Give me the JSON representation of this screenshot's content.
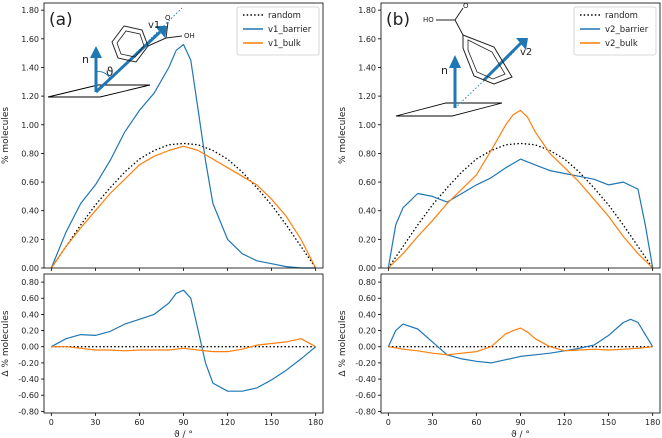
{
  "colors": {
    "blue": "#1f77b4",
    "orange": "#ff7f0e",
    "black": "#000000"
  },
  "chart_data": [
    {
      "type": "line",
      "panel_label": "(a)",
      "ylabel": "% molecules",
      "ylim": [
        0,
        1.85
      ],
      "yticks": [
        0.0,
        0.2,
        0.4,
        0.6,
        0.8,
        1.0,
        1.2,
        1.4,
        1.6,
        1.8
      ],
      "ytick_labels": [
        "0.00",
        "0.20",
        "0.40",
        "0.60",
        "0.80",
        "1.00",
        "1.20",
        "1.40",
        "1.60",
        "1.80"
      ],
      "xlim": [
        -5,
        185
      ],
      "xticks": [
        0,
        30,
        60,
        90,
        120,
        150,
        180
      ],
      "legend": [
        "random",
        "v1_barrier",
        "v1_bulk"
      ],
      "legend_position": "top-right",
      "inset": {
        "n_label": "n",
        "v_label": "v1",
        "theta_label": "ϑ",
        "atom_labels": [
          "O",
          "OH"
        ]
      },
      "series": [
        {
          "name": "random",
          "style": "dotted",
          "color": "black",
          "x": [
            0,
            10,
            20,
            30,
            40,
            50,
            60,
            70,
            80,
            90,
            100,
            110,
            120,
            130,
            140,
            150,
            160,
            170,
            180
          ],
          "y": [
            0.0,
            0.15,
            0.3,
            0.44,
            0.56,
            0.67,
            0.76,
            0.82,
            0.86,
            0.87,
            0.86,
            0.82,
            0.76,
            0.67,
            0.56,
            0.44,
            0.3,
            0.15,
            0.0
          ]
        },
        {
          "name": "v1_barrier",
          "style": "solid",
          "color": "blue",
          "x": [
            0,
            10,
            20,
            30,
            40,
            50,
            60,
            70,
            80,
            85,
            90,
            95,
            100,
            105,
            110,
            120,
            130,
            140,
            150,
            160,
            170,
            175,
            180
          ],
          "y": [
            0.0,
            0.25,
            0.45,
            0.58,
            0.75,
            0.95,
            1.1,
            1.22,
            1.4,
            1.52,
            1.56,
            1.45,
            1.1,
            0.75,
            0.45,
            0.2,
            0.1,
            0.05,
            0.03,
            0.01,
            0.0,
            0.0,
            0.0
          ]
        },
        {
          "name": "v1_bulk",
          "style": "solid",
          "color": "orange",
          "x": [
            0,
            10,
            20,
            30,
            40,
            50,
            60,
            70,
            80,
            90,
            100,
            110,
            120,
            130,
            140,
            150,
            160,
            170,
            180
          ],
          "y": [
            0.0,
            0.15,
            0.28,
            0.4,
            0.52,
            0.62,
            0.72,
            0.78,
            0.82,
            0.85,
            0.82,
            0.76,
            0.7,
            0.64,
            0.58,
            0.48,
            0.36,
            0.2,
            0.0
          ]
        }
      ]
    },
    {
      "type": "line",
      "panel_label": "",
      "ylabel": "Δ % molecules",
      "xlabel": "ϑ / °",
      "ylim": [
        -0.82,
        0.9
      ],
      "yticks": [
        -0.8,
        -0.6,
        -0.4,
        -0.2,
        0.0,
        0.2,
        0.4,
        0.6,
        0.8
      ],
      "ytick_labels": [
        "-0.80",
        "-0.60",
        "-0.40",
        "-0.20",
        "0.00",
        "0.20",
        "0.40",
        "0.60",
        "0.80"
      ],
      "xlim": [
        -5,
        185
      ],
      "xticks": [
        0,
        30,
        60,
        90,
        120,
        150,
        180
      ],
      "xtick_labels": [
        "0",
        "30",
        "60",
        "90",
        "120",
        "150",
        "180"
      ],
      "series": [
        {
          "name": "zero",
          "style": "dotted",
          "color": "black",
          "x": [
            0,
            180
          ],
          "y": [
            0,
            0
          ]
        },
        {
          "name": "v1_barrier",
          "style": "solid",
          "color": "blue",
          "x": [
            0,
            10,
            20,
            30,
            40,
            50,
            60,
            70,
            80,
            85,
            90,
            95,
            100,
            105,
            110,
            120,
            130,
            140,
            150,
            160,
            170,
            180
          ],
          "y": [
            0.0,
            0.1,
            0.15,
            0.14,
            0.19,
            0.28,
            0.34,
            0.4,
            0.54,
            0.66,
            0.7,
            0.6,
            0.2,
            -0.2,
            -0.45,
            -0.55,
            -0.55,
            -0.51,
            -0.41,
            -0.29,
            -0.15,
            0.0
          ]
        },
        {
          "name": "v1_bulk",
          "style": "solid",
          "color": "orange",
          "x": [
            0,
            10,
            20,
            30,
            40,
            50,
            60,
            70,
            80,
            90,
            100,
            110,
            120,
            130,
            140,
            150,
            160,
            170,
            180
          ],
          "y": [
            0.0,
            0.0,
            -0.02,
            -0.04,
            -0.04,
            -0.05,
            -0.04,
            -0.04,
            -0.04,
            -0.02,
            -0.04,
            -0.06,
            -0.06,
            -0.03,
            0.02,
            0.04,
            0.06,
            0.1,
            0.0
          ]
        }
      ]
    },
    {
      "type": "line",
      "panel_label": "(b)",
      "ylabel": "% molecules",
      "ylim": [
        0,
        1.85
      ],
      "yticks": [
        0.0,
        0.2,
        0.4,
        0.6,
        0.8,
        1.0,
        1.2,
        1.4,
        1.6,
        1.8
      ],
      "ytick_labels": [
        "0.00",
        "0.20",
        "0.40",
        "0.60",
        "0.80",
        "1.00",
        "1.20",
        "1.40",
        "1.60",
        "1.80"
      ],
      "xlim": [
        -5,
        185
      ],
      "xticks": [
        0,
        30,
        60,
        90,
        120,
        150,
        180
      ],
      "legend": [
        "random",
        "v2_barrier",
        "v2_bulk"
      ],
      "legend_position": "top-right",
      "inset": {
        "n_label": "n",
        "v_label": "v2",
        "theta_label": "",
        "atom_labels": [
          "HO",
          "O"
        ]
      },
      "series": [
        {
          "name": "random",
          "style": "dotted",
          "color": "black",
          "x": [
            0,
            10,
            20,
            30,
            40,
            50,
            60,
            70,
            80,
            90,
            100,
            110,
            120,
            130,
            140,
            150,
            160,
            170,
            180
          ],
          "y": [
            0.0,
            0.15,
            0.3,
            0.44,
            0.56,
            0.67,
            0.76,
            0.82,
            0.86,
            0.87,
            0.86,
            0.82,
            0.76,
            0.67,
            0.56,
            0.44,
            0.3,
            0.15,
            0.0
          ]
        },
        {
          "name": "v2_barrier",
          "style": "solid",
          "color": "blue",
          "x": [
            0,
            5,
            10,
            20,
            30,
            40,
            50,
            60,
            70,
            80,
            90,
            100,
            110,
            120,
            130,
            140,
            150,
            160,
            170,
            175,
            180
          ],
          "y": [
            0.0,
            0.3,
            0.42,
            0.52,
            0.5,
            0.46,
            0.52,
            0.58,
            0.63,
            0.7,
            0.76,
            0.72,
            0.68,
            0.66,
            0.64,
            0.62,
            0.58,
            0.6,
            0.55,
            0.3,
            0.0
          ]
        },
        {
          "name": "v2_bulk",
          "style": "solid",
          "color": "orange",
          "x": [
            0,
            10,
            20,
            30,
            40,
            50,
            60,
            70,
            80,
            85,
            90,
            95,
            100,
            110,
            120,
            130,
            140,
            150,
            160,
            170,
            180
          ],
          "y": [
            0.0,
            0.1,
            0.22,
            0.33,
            0.45,
            0.55,
            0.65,
            0.82,
            1.0,
            1.07,
            1.1,
            1.05,
            0.95,
            0.8,
            0.7,
            0.6,
            0.48,
            0.36,
            0.22,
            0.1,
            0.0
          ]
        }
      ]
    },
    {
      "type": "line",
      "panel_label": "",
      "ylabel": "Δ % molecules",
      "xlabel": "ϑ / °",
      "ylim": [
        -0.82,
        0.9
      ],
      "yticks": [
        -0.8,
        -0.6,
        -0.4,
        -0.2,
        0.0,
        0.2,
        0.4,
        0.6,
        0.8
      ],
      "ytick_labels": [
        "-0.80",
        "-0.60",
        "-0.40",
        "-0.20",
        "0.00",
        "0.20",
        "0.40",
        "0.60",
        "0.80"
      ],
      "xlim": [
        -5,
        185
      ],
      "xticks": [
        0,
        30,
        60,
        90,
        120,
        150,
        180
      ],
      "xtick_labels": [
        "0",
        "30",
        "60",
        "90",
        "120",
        "150",
        "180"
      ],
      "series": [
        {
          "name": "zero",
          "style": "dotted",
          "color": "black",
          "x": [
            0,
            180
          ],
          "y": [
            0,
            0
          ]
        },
        {
          "name": "v2_barrier",
          "style": "solid",
          "color": "blue",
          "x": [
            0,
            5,
            10,
            20,
            30,
            40,
            50,
            60,
            70,
            80,
            90,
            100,
            110,
            120,
            130,
            140,
            150,
            160,
            165,
            170,
            175,
            180
          ],
          "y": [
            0.0,
            0.2,
            0.28,
            0.22,
            0.06,
            -0.1,
            -0.15,
            -0.18,
            -0.2,
            -0.16,
            -0.12,
            -0.1,
            -0.08,
            -0.05,
            -0.02,
            0.02,
            0.14,
            0.3,
            0.34,
            0.3,
            0.15,
            0.0
          ]
        },
        {
          "name": "v2_bulk",
          "style": "solid",
          "color": "orange",
          "x": [
            0,
            10,
            20,
            30,
            40,
            50,
            60,
            70,
            80,
            85,
            90,
            95,
            100,
            110,
            120,
            130,
            140,
            150,
            160,
            170,
            180
          ],
          "y": [
            0.0,
            -0.03,
            -0.05,
            -0.08,
            -0.1,
            -0.08,
            -0.06,
            0.0,
            0.16,
            0.2,
            0.23,
            0.18,
            0.1,
            0.0,
            -0.05,
            -0.04,
            -0.03,
            -0.04,
            -0.03,
            -0.02,
            0.0
          ]
        }
      ]
    }
  ]
}
